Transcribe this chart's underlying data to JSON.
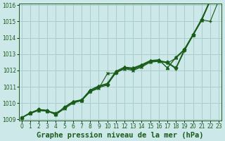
{
  "bg_color": "#cce8e8",
  "plot_bg_color": "#cce8e8",
  "grid_color": "#aacccc",
  "line_color": "#1a5c1a",
  "title": "Graphe pression niveau de la mer (hPa)",
  "title_fontsize": 7.5,
  "tick_fontsize": 5.5,
  "xmin": 0,
  "xmax": 23,
  "ymin": 1009,
  "ymax": 1016,
  "yticks": [
    1009,
    1010,
    1011,
    1012,
    1013,
    1014,
    1015,
    1016
  ],
  "xticks": [
    0,
    1,
    2,
    3,
    4,
    5,
    6,
    7,
    8,
    9,
    10,
    11,
    12,
    13,
    14,
    15,
    16,
    17,
    18,
    19,
    20,
    21,
    22,
    23
  ],
  "series": [
    {
      "x": [
        0,
        1,
        2,
        3,
        4,
        5,
        6,
        7,
        8,
        9,
        10,
        11,
        12,
        13,
        14,
        15,
        16,
        17,
        18,
        19,
        20,
        21,
        22,
        23
      ],
      "y": [
        1009.1,
        1009.4,
        1009.6,
        1009.55,
        1009.3,
        1009.75,
        1010.05,
        1010.2,
        1010.75,
        1011.0,
        1011.15,
        1011.85,
        1012.15,
        1012.1,
        1012.3,
        1012.55,
        1012.6,
        1012.5,
        1012.15,
        1013.3,
        1014.2,
        1015.1,
        1016.3,
        1016.4
      ],
      "marker": "D",
      "markersize": 2.5,
      "linewidth": 1.0,
      "linestyle": "-"
    },
    {
      "x": [
        0,
        1,
        2,
        3,
        4,
        5,
        6,
        7,
        8,
        9,
        10,
        11,
        12,
        13,
        14,
        15,
        16,
        17,
        18,
        19,
        20,
        21,
        22,
        23
      ],
      "y": [
        1009.1,
        1009.35,
        1009.55,
        1009.5,
        1009.3,
        1009.65,
        1010.0,
        1010.15,
        1010.7,
        1010.9,
        1011.8,
        1011.85,
        1012.1,
        1012.0,
        1012.2,
        1012.5,
        1012.55,
        1012.45,
        1012.75,
        1013.25,
        1014.15,
        1015.05,
        1016.25,
        1016.35
      ],
      "marker": "x",
      "markersize": 3.5,
      "linewidth": 0.8,
      "linestyle": "-"
    },
    {
      "x": [
        0,
        1,
        2,
        3,
        4,
        5,
        6,
        7,
        8,
        9,
        10,
        11,
        12,
        13,
        14,
        15,
        16,
        17,
        18,
        19,
        20,
        21,
        22,
        23
      ],
      "y": [
        1009.1,
        1009.4,
        1009.55,
        1009.5,
        1009.4,
        1009.7,
        1010.05,
        1010.15,
        1010.7,
        1010.95,
        1011.1,
        1011.9,
        1012.15,
        1012.05,
        1012.25,
        1012.55,
        1012.6,
        1012.45,
        1012.1,
        1013.2,
        1014.15,
        1015.1,
        1015.0,
        1016.3
      ],
      "marker": "+",
      "markersize": 3.5,
      "linewidth": 0.8,
      "linestyle": "-"
    },
    {
      "x": [
        0,
        1,
        2,
        3,
        4,
        5,
        6,
        7,
        8,
        9,
        10,
        11,
        12,
        13,
        14,
        15,
        16,
        17,
        18,
        19,
        20,
        21,
        22,
        23
      ],
      "y": [
        1009.1,
        1009.4,
        1009.6,
        1009.55,
        1009.3,
        1009.75,
        1010.1,
        1010.2,
        1010.8,
        1011.05,
        1011.2,
        1011.95,
        1012.2,
        1012.15,
        1012.35,
        1012.6,
        1012.65,
        1012.15,
        1012.8,
        1013.3,
        1014.2,
        1015.15,
        1016.3,
        1016.4
      ],
      "marker": "^",
      "markersize": 3,
      "linewidth": 1.0,
      "linestyle": "-"
    }
  ]
}
